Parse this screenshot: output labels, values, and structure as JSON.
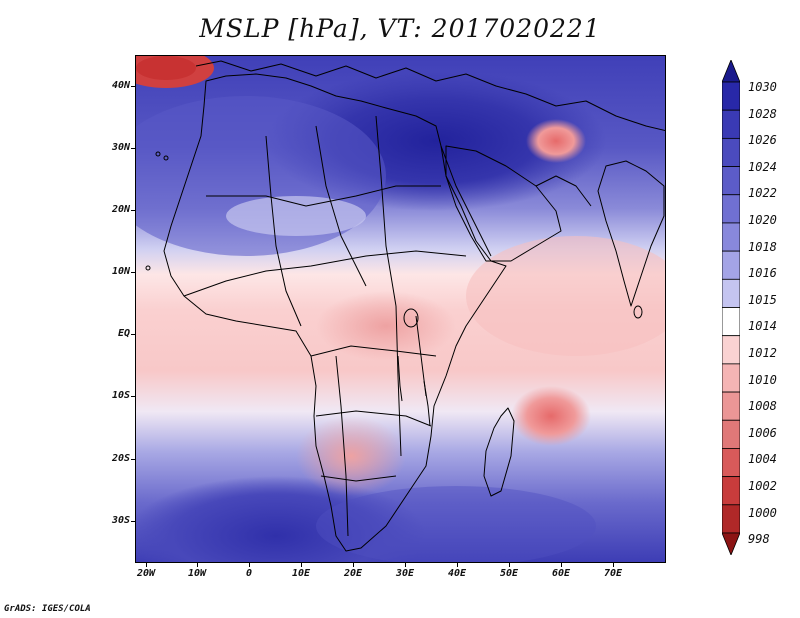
{
  "title": "MSLP [hPa], VT: 2017020221",
  "footer": "GrADS: IGES/COLA",
  "lat_labels": [
    "40N",
    "30N",
    "20N",
    "10N",
    "EQ",
    "10S",
    "20S",
    "30S"
  ],
  "lon_labels": [
    "20W",
    "10W",
    "0",
    "10E",
    "20E",
    "30E",
    "40E",
    "50E",
    "60E",
    "70E"
  ],
  "colorbar": {
    "levels": [
      "1030",
      "1028",
      "1026",
      "1024",
      "1022",
      "1020",
      "1018",
      "1016",
      "1015",
      "1014",
      "1012",
      "1010",
      "1008",
      "1006",
      "1004",
      "1002",
      "1000",
      "998"
    ],
    "colors": [
      "#1a1a8c",
      "#2828a8",
      "#3a3ab4",
      "#4b4bbe",
      "#5c5cc8",
      "#7070d2",
      "#8888dc",
      "#a4a4e6",
      "#c4c4f0",
      "#ffffff",
      "#fad2d2",
      "#f5b4b4",
      "#eb9696",
      "#e07878",
      "#d85a5a",
      "#c83c3c",
      "#b02828",
      "#8c1414"
    ],
    "top_arrow_color": "#1a1a8c",
    "bottom_arrow_color": "#8c1414"
  },
  "palette": {
    "land_border": "#000000",
    "high_dark": "#2a2aa4",
    "high_mid": "#5c5cc8",
    "high_light": "#9c9ce2",
    "neutral": "#ffffff",
    "low_light": "#fad2d2",
    "low_mid": "#f0b0b0",
    "low_dark": "#dc7a7a"
  }
}
